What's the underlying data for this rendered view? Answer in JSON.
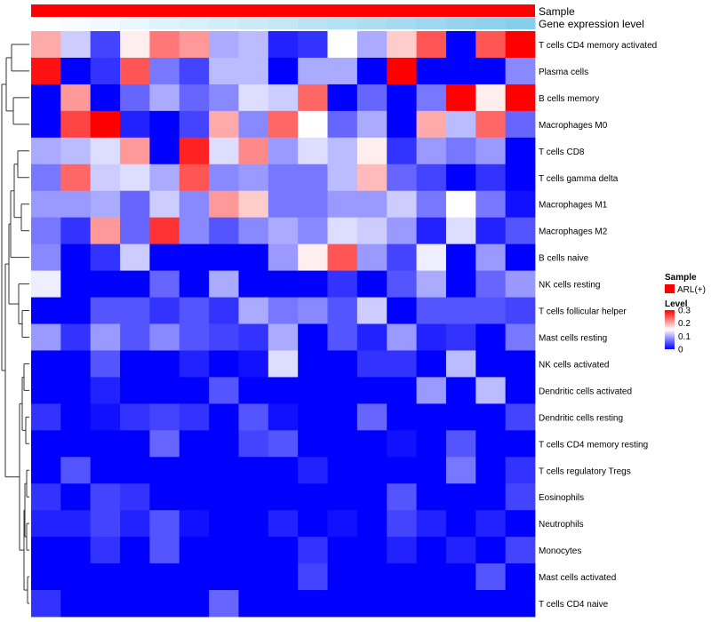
{
  "chart_data": {
    "type": "heatmap",
    "title": "",
    "annotation_tracks": [
      {
        "label": "Sample",
        "color": "#ff0000"
      },
      {
        "label": "Gene expression level",
        "gradient": [
          "#ffffff",
          "#87ceeb"
        ]
      }
    ],
    "rows": [
      "T cells CD4 memory activated",
      "Plasma cells",
      "B cells memory",
      "Macrophages M0",
      "T cells CD8",
      "T cells gamma delta",
      "Macrophages M1",
      "Macrophages M2",
      "B cells naive",
      "NK cells resting",
      "T cells follicular helper",
      "Mast cells resting",
      "NK cells activated",
      "Dendritic cells activated",
      "Dendritic cells resting",
      "T cells CD4 memory resting",
      "T cells regulatory  Tregs",
      "Eosinophils",
      "Neutrophils",
      "Monocytes",
      "Mast cells activated",
      "T cells CD4 naive"
    ],
    "n_columns": 17,
    "values": [
      [
        0.2,
        0.12,
        0.04,
        0.16,
        0.23,
        0.21,
        0.1,
        0.11,
        0.02,
        0.03,
        0.15,
        0.1,
        0.18,
        0.25,
        0.0,
        0.25,
        0.3
      ],
      [
        0.29,
        0.0,
        0.03,
        0.25,
        0.07,
        0.04,
        0.11,
        0.11,
        0.0,
        0.1,
        0.1,
        0.0,
        0.3,
        0.0,
        0.0,
        0.0,
        0.08
      ],
      [
        0.0,
        0.21,
        0.0,
        0.06,
        0.1,
        0.06,
        0.08,
        0.13,
        0.12,
        0.24,
        0.0,
        0.06,
        0.0,
        0.07,
        0.3,
        0.16,
        0.3
      ],
      [
        0.0,
        0.26,
        0.3,
        0.02,
        0.0,
        0.04,
        0.2,
        0.08,
        0.24,
        0.15,
        0.06,
        0.1,
        0.0,
        0.2,
        0.11,
        0.24,
        0.06
      ],
      [
        0.1,
        0.11,
        0.13,
        0.21,
        0.0,
        0.28,
        0.13,
        0.22,
        0.09,
        0.13,
        0.11,
        0.16,
        0.03,
        0.09,
        0.07,
        0.09,
        0.0
      ],
      [
        0.07,
        0.24,
        0.12,
        0.13,
        0.1,
        0.25,
        0.08,
        0.09,
        0.07,
        0.07,
        0.11,
        0.19,
        0.06,
        0.04,
        0.0,
        0.03,
        0.0
      ],
      [
        0.09,
        0.09,
        0.1,
        0.06,
        0.12,
        0.08,
        0.21,
        0.18,
        0.07,
        0.07,
        0.09,
        0.09,
        0.12,
        0.07,
        0.15,
        0.07,
        0.01
      ],
      [
        0.07,
        0.03,
        0.21,
        0.06,
        0.27,
        0.08,
        0.05,
        0.08,
        0.1,
        0.08,
        0.13,
        0.12,
        0.09,
        0.02,
        0.13,
        0.02,
        0.05
      ],
      [
        0.08,
        0.0,
        0.03,
        0.12,
        0.0,
        0.0,
        0.0,
        0.0,
        0.09,
        0.16,
        0.25,
        0.09,
        0.04,
        0.14,
        0.0,
        0.09,
        0.0
      ],
      [
        0.14,
        0.0,
        0.0,
        0.0,
        0.06,
        0.0,
        0.1,
        0.0,
        0.0,
        0.0,
        0.03,
        0.0,
        0.05,
        0.1,
        0.0,
        0.06,
        0.09
      ],
      [
        0.0,
        0.0,
        0.05,
        0.05,
        0.03,
        0.05,
        0.03,
        0.1,
        0.07,
        0.08,
        0.05,
        0.12,
        0.0,
        0.05,
        0.05,
        0.05,
        0.04
      ],
      [
        0.09,
        0.03,
        0.09,
        0.05,
        0.08,
        0.05,
        0.04,
        0.03,
        0.1,
        0.0,
        0.05,
        0.02,
        0.09,
        0.02,
        0.03,
        0.0,
        0.07
      ],
      [
        0.0,
        0.0,
        0.05,
        0.0,
        0.0,
        0.02,
        0.0,
        0.01,
        0.13,
        0.0,
        0.0,
        0.03,
        0.03,
        0.0,
        0.11,
        0.0,
        0.0
      ],
      [
        0.0,
        0.0,
        0.02,
        0.0,
        0.0,
        0.0,
        0.05,
        0.0,
        0.0,
        0.0,
        0.0,
        0.0,
        0.0,
        0.09,
        0.0,
        0.11,
        0.0
      ],
      [
        0.03,
        0.0,
        0.01,
        0.03,
        0.04,
        0.03,
        0.0,
        0.05,
        0.01,
        0.0,
        0.0,
        0.06,
        0.0,
        0.0,
        0.0,
        0.0,
        0.04
      ],
      [
        0.0,
        0.0,
        0.0,
        0.0,
        0.06,
        0.0,
        0.0,
        0.04,
        0.05,
        0.0,
        0.0,
        0.0,
        0.01,
        0.0,
        0.05,
        0.0,
        0.0
      ],
      [
        0.0,
        0.05,
        0.0,
        0.0,
        0.0,
        0.0,
        0.0,
        0.0,
        0.0,
        0.02,
        0.0,
        0.0,
        0.0,
        0.0,
        0.07,
        0.0,
        0.03
      ],
      [
        0.03,
        0.0,
        0.04,
        0.03,
        0.0,
        0.0,
        0.0,
        0.0,
        0.0,
        0.0,
        0.0,
        0.0,
        0.05,
        0.0,
        0.0,
        0.0,
        0.04
      ],
      [
        0.02,
        0.02,
        0.04,
        0.02,
        0.05,
        0.01,
        0.0,
        0.0,
        0.02,
        0.0,
        0.01,
        0.0,
        0.04,
        0.02,
        0.0,
        0.02,
        0.0
      ],
      [
        0.0,
        0.0,
        0.03,
        0.0,
        0.05,
        0.0,
        0.0,
        0.0,
        0.0,
        0.03,
        0.0,
        0.0,
        0.02,
        0.0,
        0.02,
        0.0,
        0.04
      ],
      [
        0.0,
        0.0,
        0.0,
        0.0,
        0.0,
        0.0,
        0.0,
        0.0,
        0.0,
        0.04,
        0.0,
        0.0,
        0.0,
        0.0,
        0.0,
        0.05,
        0.0
      ],
      [
        0.03,
        0.0,
        0.0,
        0.0,
        0.0,
        0.0,
        0.06,
        0.0,
        0.0,
        0.0,
        0.0,
        0.0,
        0.0,
        0.0,
        0.0,
        0.0,
        0.0
      ]
    ],
    "color_scale": {
      "min": 0,
      "mid": 0.15,
      "max": 0.3,
      "colors": [
        "#0000ff",
        "#ffffff",
        "#ff0000"
      ]
    },
    "legend": {
      "sample_title": "Sample",
      "sample_entry": "ARL(+)",
      "sample_color": "#ff0000",
      "level_title": "Level",
      "ticks": [
        0.3,
        0.2,
        0.1,
        0
      ],
      "tick_labels": [
        "0.3",
        "0.2",
        "0.1",
        "0"
      ]
    },
    "dendrogram": {
      "position": "left"
    }
  }
}
